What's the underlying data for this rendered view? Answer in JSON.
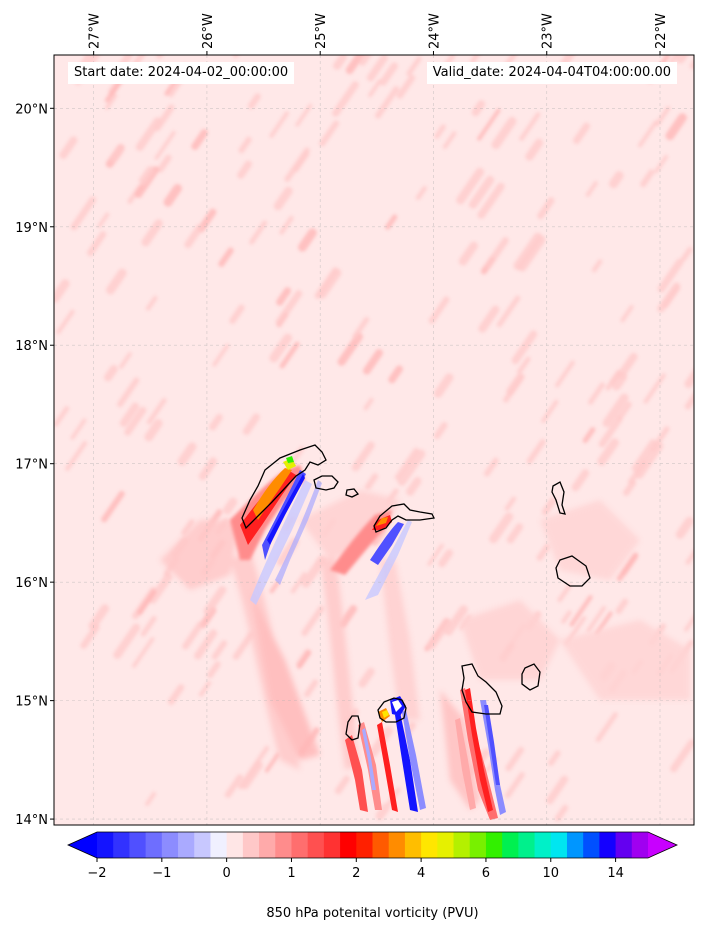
{
  "map": {
    "start_date": "Start date: 2024-04-02_00:00:00",
    "valid_date": "Valid_date: 2024-04-04T04:00:00.00",
    "lon_labels": [
      "27°W",
      "26°W",
      "25°W",
      "24°W",
      "23°W",
      "22°W"
    ],
    "lat_labels": [
      "20°N",
      "19°N",
      "18°N",
      "17°N",
      "16°N",
      "15°N",
      "14°N"
    ],
    "lon_values": [
      -27,
      -26,
      -25,
      -24,
      -23,
      -22
    ],
    "lat_values": [
      20,
      19,
      18,
      17,
      16,
      15,
      14
    ],
    "extent": {
      "lon_min": -27.35,
      "lon_max": -21.7,
      "lat_min": 13.95,
      "lat_max": 20.45
    },
    "background_color": "#ffe8e8",
    "coastline_color": "#000000"
  },
  "colorbar": {
    "label": "850 hPa potenital vorticity (PVU)",
    "tick_labels": [
      "−2",
      "−1",
      "0",
      "1",
      "2",
      "4",
      "6",
      "10",
      "14"
    ],
    "extend": "both",
    "colors": [
      "#1414ff",
      "#3232ff",
      "#5050ff",
      "#6e6eff",
      "#8c8cff",
      "#aaaaff",
      "#c8c8ff",
      "#f0f0ff",
      "#ffe6e6",
      "#ffc8c8",
      "#ffaaaa",
      "#ff8c8c",
      "#ff6e6e",
      "#ff5050",
      "#ff3232",
      "#ff0000",
      "#ff2000",
      "#ff5a00",
      "#ff8c00",
      "#ffbe00",
      "#ffe600",
      "#e6f000",
      "#b4f000",
      "#78f000",
      "#32f000",
      "#00f050",
      "#00f08c",
      "#00f0c8",
      "#00e6f0",
      "#0096ff",
      "#0050ff",
      "#1400ff",
      "#6400f0",
      "#a000f0"
    ],
    "under_color": "#0000ff",
    "over_color": "#c800ff"
  }
}
